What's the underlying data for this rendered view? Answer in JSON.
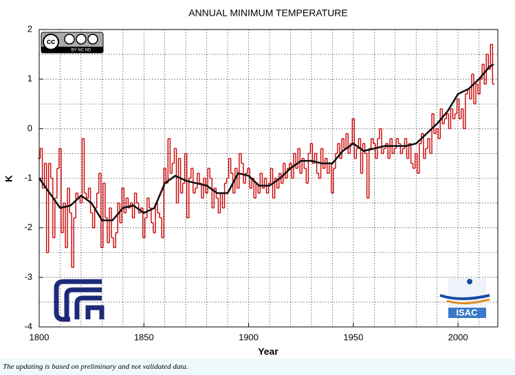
{
  "chart_data": {
    "type": "line",
    "title": "ANNUAL MINIMUM TEMPERATURE",
    "x_label": "Year",
    "y_label": "K",
    "xlim": [
      1800,
      2019
    ],
    "ylim": [
      -4,
      2
    ],
    "xticks": [
      1800,
      1850,
      1900,
      1950,
      2000
    ],
    "yticks": [
      -4,
      -3,
      -2,
      -1,
      0,
      1,
      2
    ],
    "xgrid": [
      1810,
      1820,
      1830,
      1840,
      1850,
      1860,
      1870,
      1880,
      1890,
      1900,
      1910,
      1920,
      1930,
      1940,
      1950,
      1960,
      1970,
      1980,
      1990,
      2000,
      2010
    ],
    "ygrid": [
      -3.5,
      -3,
      -2.5,
      -2,
      -1.5,
      -1,
      -0.5,
      0,
      0.5,
      1,
      1.5
    ],
    "grid": true,
    "series": [
      {
        "style": "step",
        "color": "#cc0000",
        "x": [
          1800,
          1801,
          1802,
          1803,
          1804,
          1805,
          1806,
          1807,
          1808,
          1809,
          1810,
          1811,
          1812,
          1813,
          1814,
          1815,
          1816,
          1817,
          1818,
          1819,
          1820,
          1821,
          1822,
          1823,
          1824,
          1825,
          1826,
          1827,
          1828,
          1829,
          1830,
          1831,
          1832,
          1833,
          1834,
          1835,
          1836,
          1837,
          1838,
          1839,
          1840,
          1841,
          1842,
          1843,
          1844,
          1845,
          1846,
          1847,
          1848,
          1849,
          1850,
          1851,
          1852,
          1853,
          1854,
          1855,
          1856,
          1857,
          1858,
          1859,
          1860,
          1861,
          1862,
          1863,
          1864,
          1865,
          1866,
          1867,
          1868,
          1869,
          1870,
          1871,
          1872,
          1873,
          1874,
          1875,
          1876,
          1877,
          1878,
          1879,
          1880,
          1881,
          1882,
          1883,
          1884,
          1885,
          1886,
          1887,
          1888,
          1889,
          1890,
          1891,
          1892,
          1893,
          1894,
          1895,
          1896,
          1897,
          1898,
          1899,
          1900,
          1901,
          1902,
          1903,
          1904,
          1905,
          1906,
          1907,
          1908,
          1909,
          1910,
          1911,
          1912,
          1913,
          1914,
          1915,
          1916,
          1917,
          1918,
          1919,
          1920,
          1921,
          1922,
          1923,
          1924,
          1925,
          1926,
          1927,
          1928,
          1929,
          1930,
          1931,
          1932,
          1933,
          1934,
          1935,
          1936,
          1937,
          1938,
          1939,
          1940,
          1941,
          1942,
          1943,
          1944,
          1945,
          1946,
          1947,
          1948,
          1949,
          1950,
          1951,
          1952,
          1953,
          1954,
          1955,
          1956,
          1957,
          1958,
          1959,
          1960,
          1961,
          1962,
          1963,
          1964,
          1965,
          1966,
          1967,
          1968,
          1969,
          1970,
          1971,
          1972,
          1973,
          1974,
          1975,
          1976,
          1977,
          1978,
          1979,
          1980,
          1981,
          1982,
          1983,
          1984,
          1985,
          1986,
          1987,
          1988,
          1989,
          1990,
          1991,
          1992,
          1993,
          1994,
          1995,
          1996,
          1997,
          1998,
          1999,
          2000,
          2001,
          2002,
          2003,
          2004,
          2005,
          2006,
          2007,
          2008,
          2009,
          2010,
          2011,
          2012,
          2013,
          2014,
          2015,
          2016,
          2017
        ],
        "values": [
          -0.6,
          -0.4,
          -1.2,
          -0.7,
          -2.5,
          -0.7,
          -1.0,
          -2.2,
          -1.4,
          -0.8,
          -0.4,
          -2.1,
          -1.5,
          -2.4,
          -1.2,
          -1.7,
          -2.8,
          -1.8,
          -1.3,
          -1.4,
          -1.5,
          -0.2,
          -1.3,
          -1.4,
          -1.2,
          -1.7,
          -2.0,
          -1.6,
          -1.3,
          -0.9,
          -2.4,
          -1.1,
          -1.8,
          -2.3,
          -1.6,
          -2.2,
          -2.4,
          -2.1,
          -1.5,
          -1.9,
          -1.2,
          -1.7,
          -1.4,
          -1.6,
          -1.5,
          -1.8,
          -1.3,
          -1.5,
          -1.7,
          -1.6,
          -2.2,
          -1.8,
          -1.4,
          -1.6,
          -1.9,
          -2.1,
          -1.5,
          -1.7,
          -1.8,
          -2.2,
          -0.8,
          -1.1,
          -0.2,
          -0.9,
          -0.7,
          -0.4,
          -1.5,
          -0.6,
          -1.3,
          -1.1,
          -0.5,
          -1.8,
          -1.0,
          -0.8,
          -1.3,
          -1.2,
          -0.9,
          -1.1,
          -1.4,
          -1.0,
          -1.3,
          -0.8,
          -1.0,
          -1.6,
          -1.2,
          -1.4,
          -1.7,
          -1.3,
          -1.6,
          -1.1,
          -1.0,
          -0.6,
          -0.9,
          -1.3,
          -0.8,
          -1.2,
          -0.5,
          -0.7,
          -1.1,
          -0.9,
          -0.8,
          -1.2,
          -1.0,
          -1.4,
          -1.1,
          -1.3,
          -0.9,
          -1.2,
          -1.0,
          -1.3,
          -1.1,
          -0.8,
          -1.4,
          -1.0,
          -1.2,
          -0.9,
          -1.1,
          -0.7,
          -1.0,
          -0.8,
          -0.7,
          -1.0,
          -0.5,
          -0.8,
          -0.4,
          -0.9,
          -0.6,
          -0.8,
          -1.1,
          -0.5,
          -0.3,
          -0.7,
          -0.5,
          -0.9,
          -1.0,
          -0.4,
          -0.8,
          -0.6,
          -0.9,
          -0.7,
          -1.3,
          -0.8,
          -0.5,
          -0.3,
          -0.6,
          -0.2,
          -0.4,
          -0.1,
          -0.5,
          -0.3,
          0.2,
          -0.6,
          -0.4,
          -0.2,
          -0.9,
          -0.3,
          -0.5,
          -1.4,
          -0.4,
          -0.2,
          -0.3,
          -0.6,
          -0.2,
          0.0,
          -0.5,
          -0.4,
          -0.3,
          -0.6,
          -0.2,
          -0.5,
          -0.4,
          -0.2,
          -0.3,
          -0.5,
          -0.4,
          -0.2,
          -0.6,
          -0.3,
          -0.7,
          -0.8,
          -0.5,
          -0.9,
          -0.3,
          -0.1,
          -0.6,
          -0.4,
          -0.2,
          -0.5,
          0.3,
          -0.1,
          0.0,
          -0.2,
          0.4,
          0.1,
          0.2,
          0.3,
          0.0,
          0.4,
          0.2,
          0.3,
          0.6,
          0.2,
          0.4,
          0.0,
          0.7,
          0.8,
          0.6,
          1.1,
          0.5,
          0.9,
          0.7,
          1.0,
          1.3,
          0.9,
          1.5,
          1.2,
          1.7,
          0.9
        ]
      },
      {
        "style": "smooth",
        "color": "#111111",
        "x": [
          1800,
          1805,
          1810,
          1815,
          1820,
          1825,
          1830,
          1835,
          1840,
          1845,
          1850,
          1855,
          1860,
          1865,
          1870,
          1875,
          1880,
          1885,
          1890,
          1895,
          1900,
          1905,
          1910,
          1915,
          1920,
          1925,
          1930,
          1935,
          1940,
          1945,
          1950,
          1955,
          1960,
          1965,
          1970,
          1975,
          1980,
          1985,
          1990,
          1995,
          2000,
          2005,
          2010,
          2015,
          2017
        ],
        "values": [
          -1.0,
          -1.3,
          -1.6,
          -1.55,
          -1.35,
          -1.5,
          -1.85,
          -1.85,
          -1.6,
          -1.55,
          -1.7,
          -1.6,
          -1.1,
          -0.95,
          -1.05,
          -1.1,
          -1.15,
          -1.3,
          -1.3,
          -0.9,
          -0.95,
          -1.15,
          -1.15,
          -1.0,
          -0.8,
          -0.65,
          -0.65,
          -0.7,
          -0.7,
          -0.45,
          -0.3,
          -0.45,
          -0.4,
          -0.35,
          -0.35,
          -0.35,
          -0.3,
          -0.1,
          0.1,
          0.35,
          0.7,
          0.8,
          1.0,
          1.25,
          1.3
        ]
      }
    ]
  },
  "logos": {
    "cc": "cc",
    "cc_terms": "BY  NC  ND",
    "isac": "ISAC"
  },
  "footer": "The updating is based on preliminary and not validated data."
}
